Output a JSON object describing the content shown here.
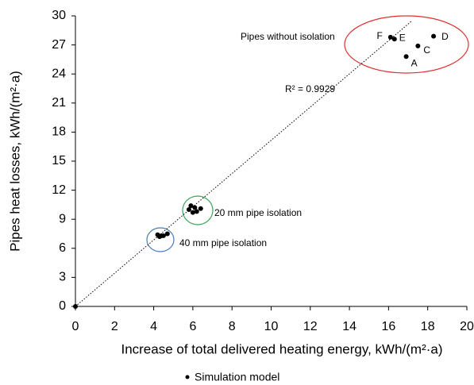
{
  "chart_data": {
    "type": "scatter",
    "xlabel": "Increase of total delivered heating energy, kWh/(m²·a)",
    "ylabel": "Pipes heat losses, kWh/(m²·a)",
    "xlim": [
      0,
      20
    ],
    "ylim": [
      0,
      30
    ],
    "xticks": [
      0,
      2,
      4,
      6,
      8,
      10,
      12,
      14,
      16,
      18,
      20
    ],
    "yticks": [
      0,
      3,
      6,
      9,
      12,
      15,
      18,
      21,
      24,
      27,
      30
    ],
    "series": [
      {
        "name": "Simulation model",
        "color": "#000000",
        "x": [
          0,
          4.2,
          4.3,
          4.4,
          4.5,
          4.7,
          5.8,
          5.9,
          6.0,
          6.1,
          6.2,
          6.4,
          16.9,
          17.5,
          18.3,
          16.3,
          16.1
        ],
        "values": [
          0,
          7.4,
          7.2,
          7.3,
          7.3,
          7.5,
          10.0,
          10.4,
          9.7,
          10.2,
          9.8,
          10.1,
          25.8,
          26.9,
          27.9,
          27.6,
          27.8
        ],
        "point_labels": [
          null,
          null,
          null,
          null,
          null,
          null,
          null,
          null,
          null,
          null,
          null,
          null,
          "A",
          "C",
          "D",
          "E",
          "F"
        ]
      }
    ],
    "trendline": {
      "x": [
        0,
        17.2
      ],
      "values": [
        0,
        29.5
      ]
    },
    "annotations": [
      "Pipes without isolation",
      "20 mm pipe isolation",
      "40 mm pipe isolation",
      "R² = 0.9929"
    ],
    "legend": "bottom"
  }
}
